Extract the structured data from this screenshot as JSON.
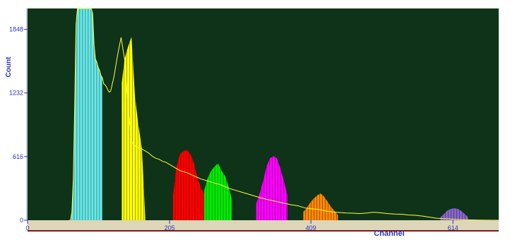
{
  "chart_data": {
    "type": "area",
    "title": "",
    "xlabel": "Channel",
    "ylabel": "Count",
    "xlim": [
      0,
      680
    ],
    "ylim": [
      0,
      2050
    ],
    "x_ticks": [
      0,
      205,
      409,
      614
    ],
    "y_ticks": [
      0,
      616,
      1232,
      1848
    ],
    "background_color": "#0e3319",
    "trace_color": "#ffff33",
    "spectrum": {
      "name": "",
      "x": [
        60,
        62,
        64,
        66,
        68,
        70,
        72,
        74,
        76,
        78,
        80,
        82,
        84,
        86,
        88,
        90,
        92,
        94,
        96,
        98,
        100,
        102,
        104,
        106,
        108,
        110,
        112,
        114,
        116,
        118,
        120,
        125,
        130,
        135,
        140,
        145,
        150,
        155,
        160,
        165,
        170,
        175,
        180,
        185,
        190,
        195,
        200,
        210,
        220,
        230,
        240,
        250,
        260,
        270,
        280,
        290,
        300,
        310,
        320,
        330,
        340,
        350,
        360,
        370,
        380,
        390,
        400,
        410,
        420,
        430,
        440,
        450,
        460,
        470,
        480,
        490,
        500,
        510,
        520,
        530,
        540,
        550,
        560,
        570,
        580,
        590,
        600,
        610,
        620,
        630,
        640,
        650,
        660,
        670,
        680
      ],
      "y": [
        0,
        0,
        80,
        400,
        1100,
        1900,
        2100,
        2300,
        2300,
        2300,
        2300,
        2300,
        2300,
        2300,
        2300,
        2300,
        2300,
        2000,
        1700,
        1560,
        1530,
        1480,
        1450,
        1400,
        1380,
        1320,
        1310,
        1290,
        1260,
        1240,
        1250,
        1400,
        1600,
        1770,
        1560,
        1100,
        760,
        720,
        700,
        690,
        670,
        650,
        620,
        600,
        590,
        570,
        560,
        520,
        480,
        460,
        430,
        400,
        380,
        360,
        340,
        310,
        290,
        270,
        250,
        230,
        210,
        195,
        180,
        165,
        150,
        140,
        120,
        110,
        105,
        90,
        80,
        75,
        70,
        68,
        65,
        70,
        78,
        72,
        64,
        60,
        58,
        50,
        48,
        40,
        30,
        20,
        15,
        12,
        8,
        5,
        3,
        2,
        1,
        0,
        0
      ]
    },
    "regions": [
      {
        "name": "",
        "color": "#66e8e8",
        "x": [
          60,
          62,
          64,
          66,
          68,
          70,
          72,
          74,
          76,
          78,
          80,
          82,
          84,
          86,
          88,
          90,
          92,
          94,
          96,
          98,
          100,
          102,
          104,
          106,
          108
        ],
        "y": [
          0,
          0,
          80,
          400,
          1100,
          1900,
          2100,
          2300,
          2300,
          2300,
          2300,
          2300,
          2300,
          2300,
          2300,
          2300,
          2300,
          2000,
          1700,
          1560,
          1530,
          1480,
          1450,
          1400,
          1380
        ]
      },
      {
        "name": "",
        "color": "#ffff00",
        "x": [
          136,
          140,
          145,
          150,
          155,
          160,
          165,
          170,
          172
        ],
        "y": [
          1330,
          1560,
          1680,
          1775,
          1200,
          920,
          700,
          0,
          0
        ]
      },
      {
        "name": "",
        "color": "#ff0000",
        "x": [
          210,
          215,
          220,
          225,
          230,
          235,
          240,
          245,
          250,
          255
        ],
        "y": [
          240,
          520,
          640,
          670,
          680,
          640,
          560,
          420,
          320,
          250
        ]
      },
      {
        "name": "",
        "color": "#00ee00",
        "x": [
          255,
          260,
          265,
          270,
          275,
          280,
          285,
          290,
          295
        ],
        "y": [
          290,
          410,
          480,
          520,
          550,
          480,
          430,
          330,
          200
        ]
      },
      {
        "name": "",
        "color": "#ff00ff",
        "x": [
          330,
          335,
          340,
          345,
          350,
          355,
          360,
          365,
          370,
          375
        ],
        "y": [
          160,
          260,
          380,
          520,
          600,
          620,
          600,
          500,
          380,
          240
        ]
      },
      {
        "name": "",
        "color": "#ff8800",
        "x": [
          398,
          403,
          408,
          413,
          418,
          423,
          428,
          433,
          438,
          443,
          448
        ],
        "y": [
          80,
          120,
          170,
          210,
          240,
          260,
          230,
          180,
          130,
          90,
          50
        ]
      },
      {
        "name": "",
        "color": "#8866cc",
        "x": [
          596,
          601,
          606,
          611,
          616,
          621,
          626,
          631,
          636
        ],
        "y": [
          30,
          60,
          95,
          110,
          115,
          110,
          90,
          60,
          30
        ]
      }
    ]
  }
}
